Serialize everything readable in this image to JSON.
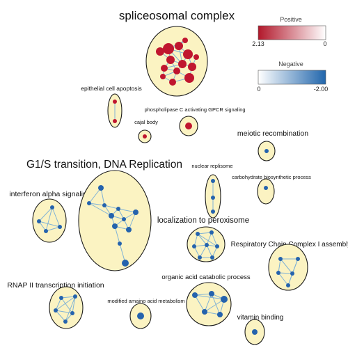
{
  "clusters": [
    {
      "id": "spliceosomal-complex",
      "label": "spliceosomal complex",
      "polarity": "positive"
    },
    {
      "id": "epithelial-cell-apoptosis",
      "label": "epithelial cell apoptosis",
      "polarity": "positive"
    },
    {
      "id": "cajal-body",
      "label": "cajal body",
      "polarity": "positive"
    },
    {
      "id": "plc-gpcr-signaling",
      "label": "phospholipase C activating GPCR signaling",
      "polarity": "positive"
    },
    {
      "id": "meiotic-recombination",
      "label": "meiotic recombination",
      "polarity": "negative"
    },
    {
      "id": "g1s-dna-replication",
      "label": "G1/S transition, DNA Replication",
      "polarity": "negative"
    },
    {
      "id": "nuclear-replisome",
      "label": "nuclear replisome",
      "polarity": "negative"
    },
    {
      "id": "carbohydrate-biosynthetic",
      "label": "carbohydrate biosynthetic process",
      "polarity": "negative"
    },
    {
      "id": "interferon-alpha",
      "label": "interferon alpha signaling",
      "polarity": "negative"
    },
    {
      "id": "localization-peroxisome",
      "label": "localization to peroxisome",
      "polarity": "negative"
    },
    {
      "id": "respiratory-chain",
      "label": "Respiratory Chain Complex I assembly",
      "polarity": "negative"
    },
    {
      "id": "organic-acid-catabolic",
      "label": "organic acid catabolic process",
      "polarity": "negative"
    },
    {
      "id": "rnap2-initiation",
      "label": "RNAP II transcription initiation",
      "polarity": "negative"
    },
    {
      "id": "modified-amino-acid",
      "label": "modified amaino acid metabolism",
      "polarity": "negative"
    },
    {
      "id": "vitamin-binding",
      "label": "vitamin binding",
      "polarity": "negative"
    }
  ],
  "legend": {
    "positive": {
      "title": "Positive",
      "min_label": "2.13",
      "max_label": "0",
      "color_strong": "#b2182b",
      "color_weak": "#ffffff"
    },
    "negative": {
      "title": "Negative",
      "min_label": "0",
      "max_label": "-2.00",
      "color_weak": "#ffffff",
      "color_strong": "#2166ac"
    }
  },
  "colors": {
    "cluster_fill": "#fbf3c2",
    "cluster_stroke": "#1a1a1a",
    "edge": "#7fb2d6",
    "node_positive": "#c0162f",
    "node_negative": "#2563ad"
  }
}
